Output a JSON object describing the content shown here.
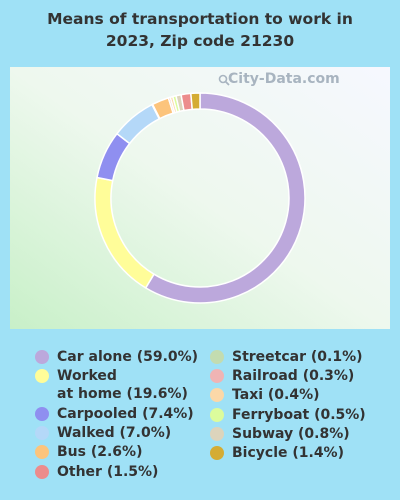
{
  "chart_data": {
    "type": "pie",
    "title_lines": [
      "Means of transportation to work in",
      "2023, Zip code 21230"
    ],
    "watermark": "City-Data.com",
    "slices": [
      {
        "label": "Car alone (59.0%)",
        "value": 59.0,
        "color": "#bca8dc"
      },
      {
        "label": "Worked at home (19.6%)",
        "label_lines": [
          "Worked",
          "at home (19.6%)"
        ],
        "value": 19.6,
        "color": "#fffd99"
      },
      {
        "label": "Carpooled (7.4%)",
        "value": 7.4,
        "color": "#8f8ff0"
      },
      {
        "label": "Walked (7.0%)",
        "value": 7.0,
        "color": "#b4d8f8"
      },
      {
        "label": "Streetcar (0.1%)",
        "value": 0.1,
        "color": "#c3dcb0"
      },
      {
        "label": "Bus (2.6%)",
        "value": 2.6,
        "color": "#fcc47c"
      },
      {
        "label": "Railroad (0.3%)",
        "value": 0.3,
        "color": "#f0b4b4"
      },
      {
        "label": "Taxi (0.4%)",
        "value": 0.4,
        "color": "#fcd8a8"
      },
      {
        "label": "Ferryboat (0.5%)",
        "value": 0.5,
        "color": "#dcfc9c"
      },
      {
        "label": "Subway (0.8%)",
        "value": 0.8,
        "color": "#dcd4bc"
      },
      {
        "label": "Other (1.5%)",
        "value": 1.5,
        "color": "#ec8c8c"
      },
      {
        "label": "Bicycle (1.4%)",
        "value": 1.4,
        "color": "#d4ac34"
      }
    ],
    "legend_left": [
      0,
      1,
      2,
      3,
      5,
      10
    ],
    "legend_right": [
      4,
      6,
      7,
      8,
      9,
      11
    ]
  }
}
